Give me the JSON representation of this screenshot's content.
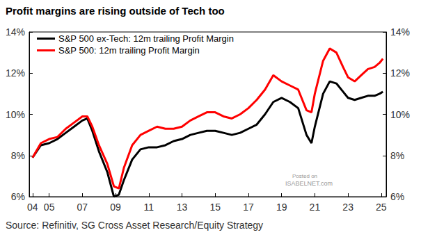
{
  "chart_data": {
    "type": "line",
    "title": "Profit margins are rising outside of Tech too",
    "source": "Source: Refinitiv, SG Cross Asset Research/Equity Strategy",
    "annotations": [
      "Posted on",
      "ISABELNET.com"
    ],
    "x": [
      2004.0,
      2004.5,
      2005.0,
      2005.5,
      2006.0,
      2006.5,
      2007.0,
      2007.3,
      2007.6,
      2008.0,
      2008.5,
      2008.9,
      2009.2,
      2009.5,
      2010.0,
      2010.5,
      2011.0,
      2011.5,
      2012.0,
      2012.5,
      2013.0,
      2013.5,
      2014.0,
      2014.5,
      2015.0,
      2015.5,
      2016.0,
      2016.5,
      2017.0,
      2017.5,
      2018.0,
      2018.5,
      2019.0,
      2019.5,
      2020.0,
      2020.5,
      2020.8,
      2021.0,
      2021.5,
      2021.9,
      2022.3,
      2022.7,
      2023.0,
      2023.4,
      2023.8,
      2024.2,
      2024.6,
      2024.9,
      2025.1
    ],
    "series": [
      {
        "name": "S&P 500 ex-Tech: 12m trailing Profit Margin",
        "color": "#000000",
        "values": [
          7.9,
          8.5,
          8.6,
          8.8,
          9.1,
          9.4,
          9.7,
          9.8,
          9.2,
          8.2,
          7.2,
          6.0,
          6.1,
          6.8,
          7.8,
          8.3,
          8.4,
          8.4,
          8.5,
          8.7,
          8.8,
          9.0,
          9.1,
          9.2,
          9.2,
          9.1,
          9.0,
          9.1,
          9.3,
          9.5,
          10.0,
          10.6,
          10.8,
          10.6,
          10.3,
          9.0,
          8.6,
          9.4,
          11.0,
          11.6,
          11.5,
          11.1,
          10.8,
          10.7,
          10.8,
          10.9,
          10.9,
          11.0,
          11.1
        ]
      },
      {
        "name": "S&P 500: 12m trailing Profit Margin",
        "color": "#ff0000",
        "values": [
          7.9,
          8.6,
          8.8,
          8.9,
          9.3,
          9.6,
          9.9,
          9.9,
          9.4,
          8.5,
          7.6,
          6.5,
          6.4,
          7.4,
          8.5,
          9.0,
          9.2,
          9.4,
          9.3,
          9.3,
          9.4,
          9.7,
          9.9,
          10.1,
          10.1,
          9.9,
          9.8,
          10.0,
          10.3,
          10.7,
          11.2,
          11.9,
          11.6,
          11.4,
          11.2,
          10.2,
          10.1,
          11.0,
          12.6,
          13.2,
          13.0,
          12.3,
          11.8,
          11.6,
          11.9,
          12.2,
          12.3,
          12.5,
          12.7
        ]
      }
    ],
    "xlim": [
      2003.8,
      2025.3
    ],
    "xticks": [
      {
        "value": 2004,
        "label": "04"
      },
      {
        "value": 2005,
        "label": "05"
      },
      {
        "value": 2007,
        "label": "07"
      },
      {
        "value": 2009,
        "label": "09"
      },
      {
        "value": 2011,
        "label": "11"
      },
      {
        "value": 2013,
        "label": "13"
      },
      {
        "value": 2015,
        "label": "15"
      },
      {
        "value": 2017,
        "label": "17"
      },
      {
        "value": 2019,
        "label": "19"
      },
      {
        "value": 2021,
        "label": "21"
      },
      {
        "value": 2023,
        "label": "23"
      },
      {
        "value": 2025,
        "label": "25"
      }
    ],
    "ylim": [
      6,
      14
    ],
    "yticks": [
      {
        "value": 6,
        "label": "6%"
      },
      {
        "value": 8,
        "label": "8%"
      },
      {
        "value": 10,
        "label": "10%"
      },
      {
        "value": 12,
        "label": "12%"
      },
      {
        "value": 14,
        "label": "14%"
      }
    ],
    "y2lim": [
      6,
      14
    ],
    "y2ticks": [
      {
        "value": 6,
        "label": "6%"
      },
      {
        "value": 8,
        "label": "8%"
      },
      {
        "value": 10,
        "label": "10%"
      },
      {
        "value": 12,
        "label": "12%"
      },
      {
        "value": 14,
        "label": "14%"
      }
    ],
    "grid": false,
    "legend": "upper left"
  }
}
